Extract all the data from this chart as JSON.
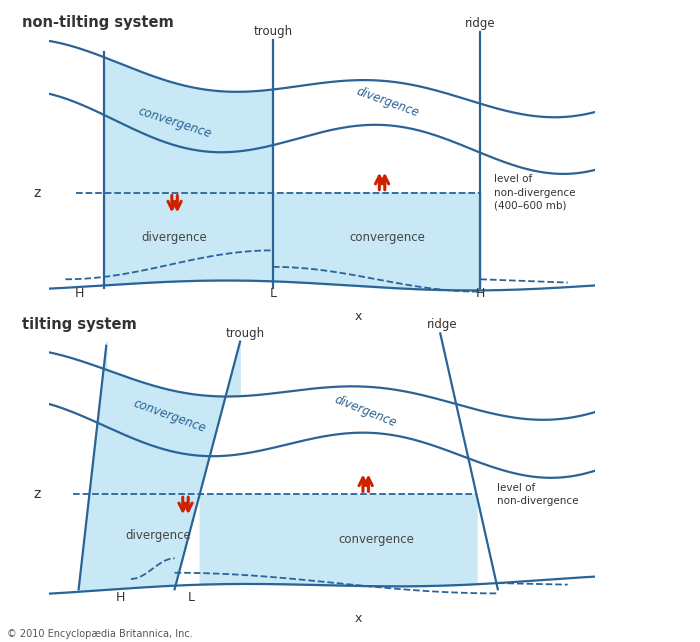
{
  "bg_color": "#ffffff",
  "fill_color": "#c8e8f5",
  "line_color": "#2a6496",
  "text_color": "#444444",
  "italic_color": "#2a6496",
  "arrow_color": "#cc2200",
  "label_color": "#333333",
  "title1": "non-tilting system",
  "title2": "tilting system",
  "copyright": "© 2010 Encyclopædia Britannica, Inc.",
  "ndiv_label1": "level of\nnon-divergence\n(400–600 mb)",
  "ndiv_label2": "level of\nnon-divergence"
}
